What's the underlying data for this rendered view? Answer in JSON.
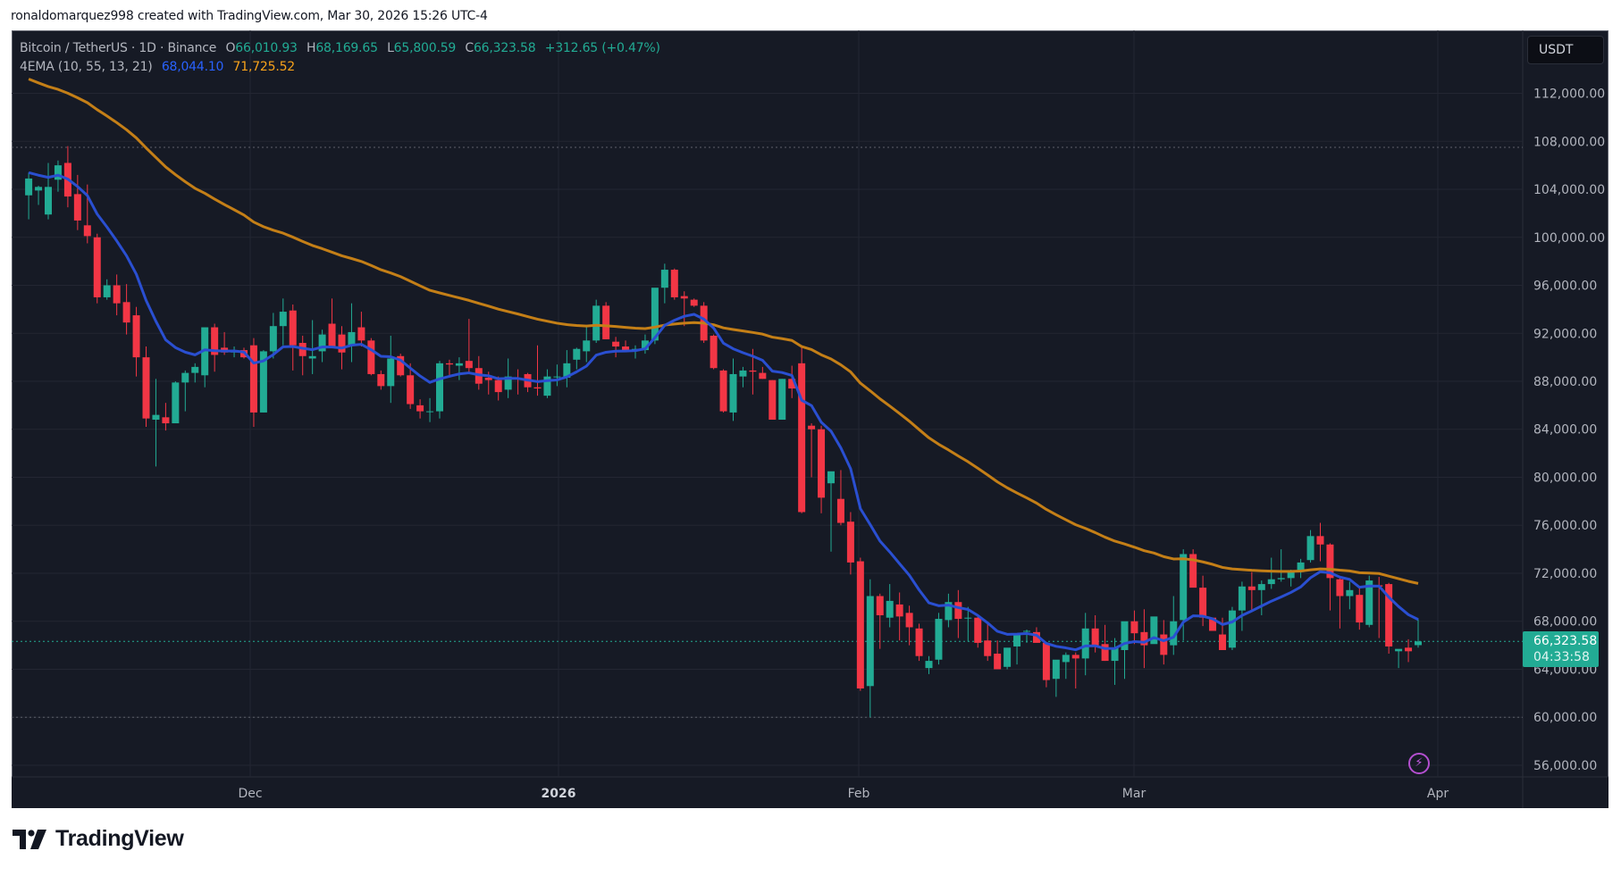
{
  "credit": "ronaldomarquez998 created with TradingView.com, Mar 30, 2026 15:26 UTC-4",
  "legend": {
    "symbol": "Bitcoin / TetherUS · 1D · Binance",
    "open_label": "O",
    "open": "66,010.93",
    "high_label": "H",
    "high": "68,169.65",
    "low_label": "L",
    "low": "65,800.59",
    "close_label": "C",
    "close": "66,323.58",
    "change": "+312.65 (+0.47%)",
    "indicator": "4EMA (10, 55, 13, 21)",
    "ema_fast": "68,044.10",
    "ema_slow": "71,725.52"
  },
  "price_axis": {
    "unit": "USDT",
    "ticks": [
      "112,000.00",
      "108,000.00",
      "104,000.00",
      "100,000.00",
      "96,000.00",
      "92,000.00",
      "88,000.00",
      "84,000.00",
      "80,000.00",
      "76,000.00",
      "72,000.00",
      "68,000.00",
      "64,000.00",
      "60,000.00",
      "56,000.00"
    ]
  },
  "last_price": {
    "price": "66,323.58",
    "countdown": "04:33:58"
  },
  "time_axis": {
    "labels": [
      "Dec",
      "2026",
      "Feb",
      "Mar",
      "Apr"
    ]
  },
  "colors": {
    "up": "#22ab94",
    "down": "#f23645",
    "ema_fast": "#2a4fd1",
    "ema_slow": "#c47f17",
    "background": "#161a25",
    "grid": "#232632"
  },
  "brand": "TradingView",
  "chart_data": {
    "type": "candlestick",
    "title": "Bitcoin / TetherUS · 1D · Binance",
    "xlabel": "",
    "ylabel": "USDT",
    "ylim": [
      54000,
      115000
    ],
    "grid": true,
    "legend_position": "top-left",
    "x_tick_labels": [
      "Dec",
      "2026",
      "Feb",
      "Mar",
      "Apr"
    ],
    "y_tick_labels": [
      112000,
      108000,
      104000,
      100000,
      96000,
      92000,
      88000,
      84000,
      80000,
      76000,
      72000,
      68000,
      64000,
      60000,
      56000
    ],
    "horizontal_dotted_lines": [
      107500,
      60000,
      66323.58
    ],
    "candles": [
      [
        103500,
        105400,
        101500,
        104900
      ],
      [
        103900,
        104300,
        102700,
        104200
      ],
      [
        101900,
        106200,
        101500,
        104200
      ],
      [
        104800,
        106400,
        103800,
        106000
      ],
      [
        106200,
        107600,
        102500,
        103400
      ],
      [
        103600,
        105200,
        100600,
        101400
      ],
      [
        101000,
        104400,
        99500,
        100100
      ],
      [
        100000,
        100300,
        94500,
        95000
      ],
      [
        95000,
        96500,
        94800,
        96000
      ],
      [
        96000,
        96900,
        93500,
        94500
      ],
      [
        94600,
        96100,
        91900,
        92900
      ],
      [
        93500,
        94200,
        88400,
        90000
      ],
      [
        90000,
        90900,
        84200,
        84900
      ],
      [
        84800,
        88200,
        80900,
        85200
      ],
      [
        85000,
        86200,
        83900,
        84500
      ],
      [
        84500,
        88000,
        86000,
        87900
      ],
      [
        87900,
        88900,
        85500,
        88700
      ],
      [
        88700,
        89500,
        87900,
        89200
      ],
      [
        88500,
        92000,
        87500,
        92500
      ],
      [
        92500,
        92800,
        88800,
        90200
      ],
      [
        90800,
        92100,
        90200,
        90400
      ],
      [
        90400,
        90900,
        90000,
        90600
      ],
      [
        90600,
        90800,
        89900,
        90000
      ],
      [
        91000,
        91600,
        84200,
        85400
      ],
      [
        85400,
        90600,
        85400,
        90500
      ],
      [
        90500,
        93700,
        89900,
        92600
      ],
      [
        92600,
        94900,
        91000,
        93800
      ],
      [
        93900,
        94400,
        88900,
        91000
      ],
      [
        91200,
        91800,
        88500,
        90100
      ],
      [
        89900,
        93100,
        88600,
        90100
      ],
      [
        90500,
        92300,
        89600,
        91900
      ],
      [
        92800,
        94900,
        90900,
        90800
      ],
      [
        91900,
        92600,
        89000,
        90400
      ],
      [
        91000,
        94500,
        89600,
        92100
      ],
      [
        92500,
        93800,
        90900,
        91400
      ],
      [
        91400,
        91600,
        88500,
        88600
      ],
      [
        88600,
        88900,
        87300,
        87600
      ],
      [
        87600,
        91800,
        86200,
        89900
      ],
      [
        90100,
        90300,
        88400,
        88500
      ],
      [
        88500,
        89500,
        85700,
        86100
      ],
      [
        86000,
        86500,
        84900,
        85500
      ],
      [
        85500,
        86600,
        84600,
        85500
      ],
      [
        85500,
        89700,
        84900,
        89500
      ],
      [
        89500,
        89800,
        88300,
        89400
      ],
      [
        89300,
        90000,
        88100,
        89500
      ],
      [
        89700,
        93200,
        88600,
        89100
      ],
      [
        89100,
        90100,
        87300,
        87800
      ],
      [
        88300,
        88800,
        86900,
        88100
      ],
      [
        88100,
        88400,
        86400,
        87100
      ],
      [
        87300,
        89900,
        86600,
        88400
      ],
      [
        88300,
        89000,
        86900,
        88200
      ],
      [
        88600,
        88700,
        87100,
        87500
      ],
      [
        87500,
        91000,
        86800,
        87400
      ],
      [
        86800,
        89000,
        86600,
        88400
      ],
      [
        88400,
        89400,
        87600,
        88400
      ],
      [
        88300,
        90600,
        87500,
        89500
      ],
      [
        89800,
        90800,
        89000,
        90700
      ],
      [
        90500,
        92700,
        89600,
        91400
      ],
      [
        91400,
        94800,
        91200,
        94300
      ],
      [
        94300,
        94600,
        91500,
        91500
      ],
      [
        91300,
        91700,
        90000,
        90900
      ],
      [
        90900,
        91400,
        90500,
        90600
      ],
      [
        90600,
        91000,
        89900,
        90700
      ],
      [
        90600,
        91900,
        90300,
        91400
      ],
      [
        91400,
        95500,
        91100,
        95800
      ],
      [
        95800,
        97800,
        94500,
        97300
      ],
      [
        97300,
        97400,
        94800,
        95000
      ],
      [
        95100,
        95500,
        92600,
        94900
      ],
      [
        94800,
        94900,
        94200,
        94300
      ],
      [
        94300,
        94600,
        91200,
        91400
      ],
      [
        91800,
        91900,
        89000,
        89100
      ],
      [
        88900,
        89000,
        85400,
        85500
      ],
      [
        85400,
        89900,
        84700,
        88600
      ],
      [
        88400,
        89200,
        87500,
        88900
      ],
      [
        88900,
        90700,
        86900,
        88800
      ],
      [
        88700,
        89200,
        88200,
        88200
      ],
      [
        88100,
        88100,
        84800,
        84800
      ],
      [
        84800,
        88200,
        84800,
        88200
      ],
      [
        88200,
        89300,
        86600,
        87400
      ],
      [
        89500,
        90800,
        77000,
        77100
      ],
      [
        84300,
        84500,
        80000,
        84000
      ],
      [
        84000,
        84300,
        77000,
        78300
      ],
      [
        79500,
        80400,
        73800,
        80500
      ],
      [
        78200,
        80600,
        76000,
        76200
      ],
      [
        76300,
        77100,
        71900,
        72900
      ],
      [
        73000,
        73300,
        62200,
        62400
      ],
      [
        62600,
        71500,
        60000,
        70100
      ],
      [
        70100,
        70300,
        65700,
        68500
      ],
      [
        68300,
        71100,
        67500,
        69700
      ],
      [
        69400,
        70400,
        66400,
        68400
      ],
      [
        68700,
        69300,
        66000,
        67500
      ],
      [
        67400,
        67800,
        64700,
        65100
      ],
      [
        64100,
        65100,
        63600,
        64700
      ],
      [
        64800,
        68700,
        64400,
        68200
      ],
      [
        68100,
        70300,
        67500,
        69600
      ],
      [
        69600,
        70600,
        66600,
        68200
      ],
      [
        68300,
        69200,
        66300,
        68300
      ],
      [
        68300,
        68400,
        65800,
        66200
      ],
      [
        66400,
        67800,
        64700,
        65100
      ],
      [
        65300,
        66400,
        64100,
        64000
      ],
      [
        64200,
        65200,
        64000,
        65800
      ],
      [
        65900,
        66900,
        64400,
        67000
      ],
      [
        67200,
        67300,
        66200,
        67200
      ],
      [
        67100,
        67500,
        66800,
        66200
      ],
      [
        66200,
        66200,
        62500,
        63100
      ],
      [
        63200,
        63600,
        61700,
        64800
      ],
      [
        64600,
        65400,
        63200,
        65200
      ],
      [
        65200,
        65400,
        62400,
        64900
      ],
      [
        64900,
        68700,
        63500,
        67400
      ],
      [
        67400,
        68500,
        65400,
        66000
      ],
      [
        66100,
        67700,
        64700,
        64700
      ],
      [
        64700,
        66600,
        62700,
        65800
      ],
      [
        65600,
        66000,
        63200,
        68000
      ],
      [
        68000,
        68900,
        66100,
        67000
      ],
      [
        67100,
        69000,
        64100,
        66000
      ],
      [
        66100,
        67800,
        66600,
        68400
      ],
      [
        66900,
        68100,
        64400,
        65200
      ],
      [
        66000,
        70100,
        65200,
        68000
      ],
      [
        68100,
        74000,
        66400,
        73600
      ],
      [
        73600,
        74000,
        70900,
        70800
      ],
      [
        70800,
        71800,
        67600,
        68300
      ],
      [
        68300,
        68300,
        67500,
        67200
      ],
      [
        66900,
        68300,
        65600,
        65600
      ],
      [
        65800,
        69200,
        65600,
        68900
      ],
      [
        68900,
        71300,
        67200,
        70900
      ],
      [
        70900,
        72100,
        68900,
        70600
      ],
      [
        70600,
        71400,
        68500,
        71100
      ],
      [
        71100,
        73300,
        70700,
        71500
      ],
      [
        71500,
        74000,
        71300,
        71600
      ],
      [
        71600,
        72300,
        70900,
        72100
      ],
      [
        72100,
        73200,
        71600,
        72900
      ],
      [
        73100,
        75600,
        72900,
        75100
      ],
      [
        75100,
        76200,
        73000,
        74400
      ],
      [
        74400,
        74500,
        68900,
        71600
      ],
      [
        71500,
        71700,
        67400,
        70100
      ],
      [
        70100,
        71300,
        69000,
        70600
      ],
      [
        70200,
        70800,
        67300,
        67900
      ],
      [
        67700,
        71800,
        67500,
        71400
      ],
      [
        71000,
        71700,
        66600,
        70900
      ],
      [
        71100,
        71200,
        65300,
        65900
      ],
      [
        65500,
        65600,
        64100,
        65700
      ],
      [
        65800,
        66500,
        64600,
        65500
      ],
      [
        66010.93,
        68169.65,
        65800.59,
        66323.58
      ]
    ],
    "ema_fast_last": 68044.1,
    "ema_slow_last": 71725.52
  }
}
